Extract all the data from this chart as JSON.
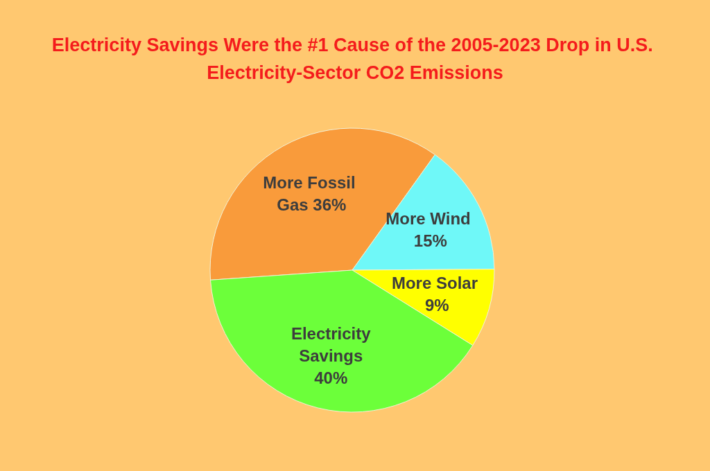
{
  "chart_data": {
    "type": "pie",
    "title": "Electricity Savings Were the #1 Cause of the 2005-2023 Drop in U.S. Electricity-Sector CO2 Emissions",
    "categories": [
      "More Fossil Gas",
      "More Wind",
      "More Solar",
      "Electricity Savings"
    ],
    "values": [
      36,
      15,
      9,
      40
    ],
    "value_labels": [
      "36%",
      "15%",
      "9%",
      "40%"
    ],
    "colors": [
      "#f99b3b",
      "#6ff8f8",
      "#ffff00",
      "#6cff3a"
    ]
  }
}
